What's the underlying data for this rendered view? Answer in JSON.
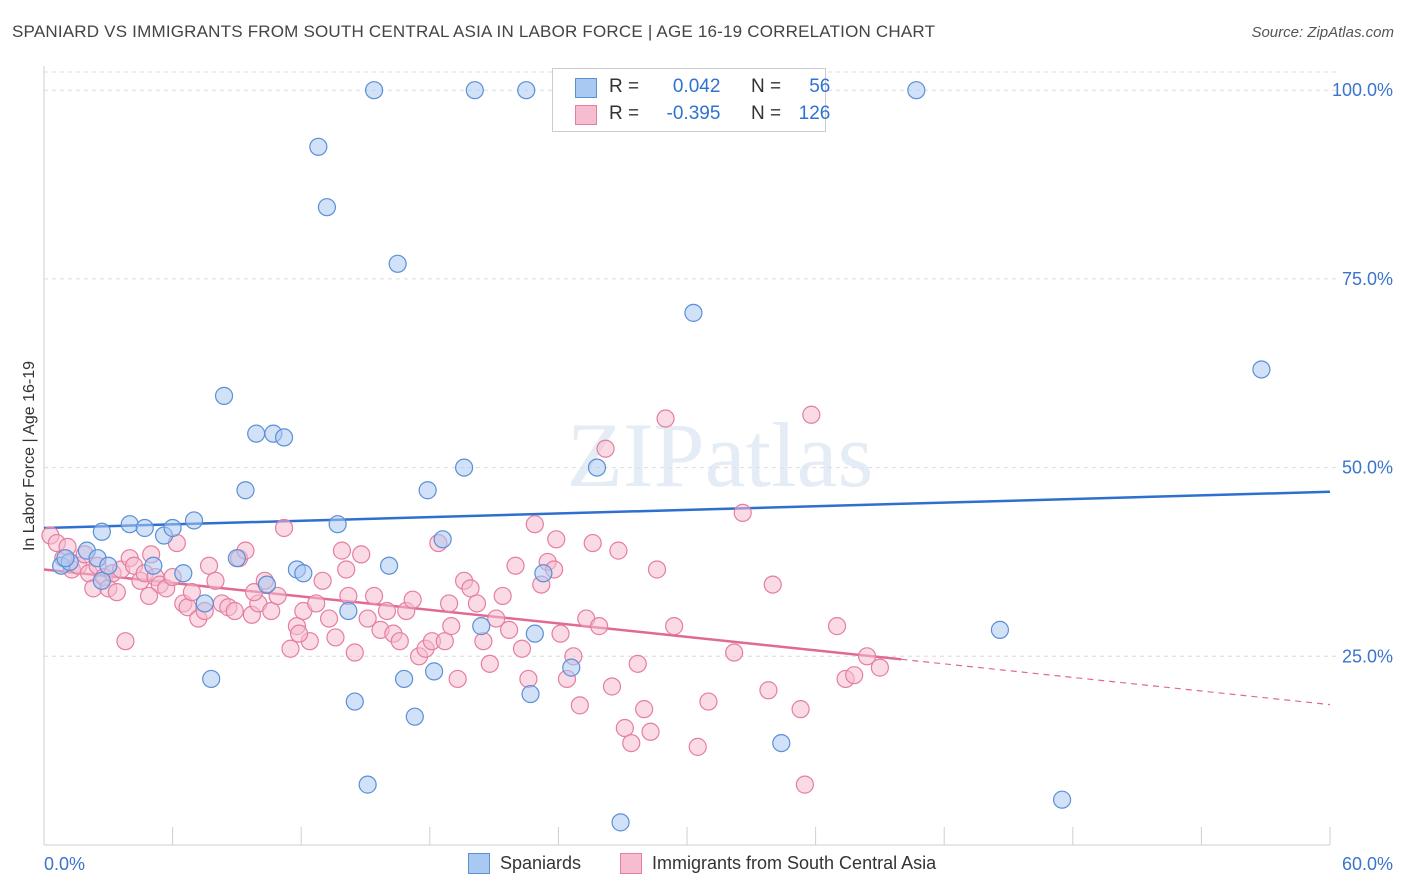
{
  "title": "SPANIARD VS IMMIGRANTS FROM SOUTH CENTRAL ASIA IN LABOR FORCE | AGE 16-19 CORRELATION CHART",
  "source": "Source: ZipAtlas.com",
  "watermark": "ZIPatlas",
  "legend": {
    "r_label": "R =",
    "n_label": "N =",
    "series1": {
      "r": "0.042",
      "n": "56"
    },
    "series2": {
      "r": "-0.395",
      "n": "126"
    }
  },
  "colors": {
    "blue_fill": "#a9c8f2",
    "blue_stroke": "#5b8fd6",
    "blue_line": "#2f6fd0",
    "pink_fill": "#f6bccf",
    "pink_stroke": "#e57ea0",
    "pink_line": "#e06a93",
    "axis_label": "#3a74cc"
  },
  "chart_data": {
    "type": "scatter",
    "ylabel": "In Labor Force | Age 16-19",
    "xlim": [
      0,
      60
    ],
    "ylim": [
      0,
      104
    ],
    "x_tick_labels": [
      "0.0%",
      "60.0%"
    ],
    "y_tick_labels": [
      "25.0%",
      "50.0%",
      "75.0%",
      "100.0%"
    ],
    "y_ticks": [
      25,
      50,
      75,
      100
    ],
    "grid": "horizontal dashed",
    "legend_position": "top-center",
    "series": [
      {
        "name": "Spaniards",
        "trend": {
          "x": [
            0,
            60
          ],
          "y": [
            42.0,
            46.8
          ]
        },
        "points": [
          [
            0.8,
            37
          ],
          [
            1.2,
            37.5
          ],
          [
            2,
            39
          ],
          [
            2.5,
            38
          ],
          [
            2.7,
            35
          ],
          [
            3,
            37
          ],
          [
            2.7,
            41.5
          ],
          [
            4,
            42.5
          ],
          [
            4.7,
            42
          ],
          [
            5.1,
            37
          ],
          [
            5.6,
            41
          ],
          [
            6.0,
            42
          ],
          [
            6.5,
            36
          ],
          [
            7.0,
            43
          ],
          [
            7.5,
            32
          ],
          [
            7.8,
            22
          ],
          [
            8.4,
            59.5
          ],
          [
            9.0,
            38
          ],
          [
            9.4,
            47
          ],
          [
            9.9,
            54.5
          ],
          [
            10.4,
            34.5
          ],
          [
            10.7,
            54.5
          ],
          [
            11.2,
            54
          ],
          [
            11.8,
            36.5
          ],
          [
            12.1,
            36
          ],
          [
            12.8,
            92.5
          ],
          [
            13.2,
            84.5
          ],
          [
            13.7,
            42.5
          ],
          [
            14.2,
            31
          ],
          [
            14.5,
            19
          ],
          [
            15.1,
            8
          ],
          [
            15.4,
            100
          ],
          [
            16.1,
            37
          ],
          [
            16.5,
            77
          ],
          [
            16.8,
            22
          ],
          [
            17.3,
            17
          ],
          [
            17.9,
            47
          ],
          [
            18.2,
            23
          ],
          [
            18.6,
            40.5
          ],
          [
            19.6,
            50
          ],
          [
            20.1,
            100
          ],
          [
            20.4,
            29
          ],
          [
            22.5,
            100
          ],
          [
            22.7,
            20
          ],
          [
            22.9,
            28
          ],
          [
            23.3,
            36
          ],
          [
            24.6,
            23.5
          ],
          [
            25.8,
            50
          ],
          [
            26.9,
            3
          ],
          [
            30.3,
            70.5
          ],
          [
            34.4,
            13.5
          ],
          [
            40.7,
            100
          ],
          [
            44.6,
            28.5
          ],
          [
            47.5,
            6
          ],
          [
            56.8,
            63
          ],
          [
            1.0,
            38
          ]
        ]
      },
      {
        "name": "Immigrants from South Central Asia",
        "trend": {
          "x": [
            0,
            40
          ],
          "y": [
            36.5,
            24.6
          ]
        },
        "trend_extension": {
          "x": [
            40,
            60
          ],
          "y": [
            24.6,
            18.6
          ]
        },
        "points": [
          [
            0.3,
            41
          ],
          [
            0.6,
            40
          ],
          [
            0.9,
            38
          ],
          [
            1.1,
            39.5
          ],
          [
            1.3,
            36.5
          ],
          [
            1.6,
            37
          ],
          [
            1.9,
            38.5
          ],
          [
            2.1,
            36
          ],
          [
            2.3,
            34
          ],
          [
            2.5,
            37
          ],
          [
            2.8,
            35.5
          ],
          [
            3.0,
            34
          ],
          [
            3.2,
            36
          ],
          [
            3.4,
            33.5
          ],
          [
            3.6,
            36.5
          ],
          [
            3.8,
            27
          ],
          [
            4.0,
            38
          ],
          [
            4.2,
            37
          ],
          [
            4.5,
            35
          ],
          [
            4.7,
            36
          ],
          [
            5.0,
            38.5
          ],
          [
            5.2,
            35.5
          ],
          [
            5.4,
            34.5
          ],
          [
            5.7,
            34
          ],
          [
            6.0,
            35.5
          ],
          [
            6.2,
            40
          ],
          [
            6.5,
            32
          ],
          [
            6.7,
            31.5
          ],
          [
            6.9,
            33.5
          ],
          [
            7.2,
            30
          ],
          [
            7.5,
            31
          ],
          [
            7.7,
            37
          ],
          [
            8.0,
            35
          ],
          [
            8.3,
            32
          ],
          [
            8.6,
            31.5
          ],
          [
            8.9,
            31
          ],
          [
            9.1,
            38
          ],
          [
            9.4,
            39
          ],
          [
            9.7,
            30.5
          ],
          [
            10.0,
            32
          ],
          [
            10.3,
            35
          ],
          [
            10.6,
            31
          ],
          [
            10.9,
            33
          ],
          [
            11.2,
            42
          ],
          [
            11.5,
            26
          ],
          [
            11.8,
            29
          ],
          [
            12.1,
            31
          ],
          [
            12.4,
            27
          ],
          [
            12.7,
            32
          ],
          [
            13.0,
            35
          ],
          [
            13.3,
            30
          ],
          [
            13.6,
            27.5
          ],
          [
            13.9,
            39
          ],
          [
            14.2,
            33
          ],
          [
            14.5,
            25.5
          ],
          [
            14.8,
            38.5
          ],
          [
            15.1,
            30
          ],
          [
            15.4,
            33
          ],
          [
            15.7,
            28.5
          ],
          [
            16.0,
            31
          ],
          [
            16.3,
            28
          ],
          [
            16.6,
            27
          ],
          [
            16.9,
            31
          ],
          [
            17.2,
            32.5
          ],
          [
            17.5,
            25
          ],
          [
            17.8,
            26
          ],
          [
            18.1,
            27
          ],
          [
            18.4,
            40
          ],
          [
            18.7,
            27
          ],
          [
            19.0,
            29
          ],
          [
            19.3,
            22
          ],
          [
            19.6,
            35
          ],
          [
            19.9,
            34
          ],
          [
            20.2,
            32
          ],
          [
            20.5,
            27
          ],
          [
            20.8,
            24
          ],
          [
            21.1,
            30
          ],
          [
            21.4,
            33
          ],
          [
            21.7,
            28.5
          ],
          [
            22.0,
            37
          ],
          [
            22.3,
            26
          ],
          [
            22.6,
            22
          ],
          [
            22.9,
            42.5
          ],
          [
            23.2,
            34.5
          ],
          [
            23.5,
            37.5
          ],
          [
            23.8,
            36.5
          ],
          [
            24.1,
            28
          ],
          [
            24.4,
            22
          ],
          [
            24.7,
            25
          ],
          [
            25.0,
            18.5
          ],
          [
            25.3,
            30
          ],
          [
            25.6,
            40
          ],
          [
            25.9,
            29
          ],
          [
            26.2,
            52.5
          ],
          [
            26.5,
            21
          ],
          [
            26.8,
            39
          ],
          [
            27.1,
            15.5
          ],
          [
            27.4,
            13.5
          ],
          [
            27.7,
            24
          ],
          [
            28.0,
            18
          ],
          [
            28.3,
            15
          ],
          [
            28.6,
            36.5
          ],
          [
            29.0,
            56.5
          ],
          [
            29.4,
            29
          ],
          [
            30.5,
            13
          ],
          [
            31.0,
            19
          ],
          [
            32.2,
            25.5
          ],
          [
            32.6,
            44
          ],
          [
            33.8,
            20.5
          ],
          [
            34.0,
            34.5
          ],
          [
            35.3,
            18
          ],
          [
            35.5,
            8
          ],
          [
            35.8,
            57
          ],
          [
            37.0,
            29
          ],
          [
            37.4,
            22
          ],
          [
            37.8,
            22.5
          ],
          [
            38.4,
            25
          ],
          [
            39.0,
            23.5
          ],
          [
            4.9,
            33
          ],
          [
            9.8,
            33.5
          ],
          [
            14.1,
            36.5
          ],
          [
            18.9,
            32
          ],
          [
            23.9,
            40.5
          ],
          [
            11.9,
            28
          ]
        ]
      }
    ]
  },
  "bottom_legend": [
    "Spaniards",
    "Immigrants from South Central Asia"
  ]
}
